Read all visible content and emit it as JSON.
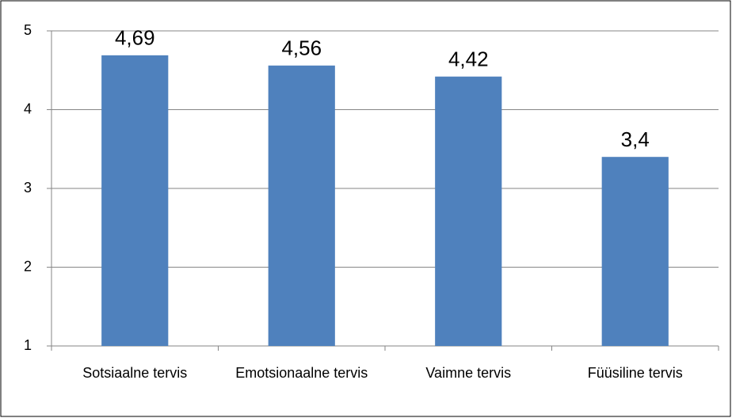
{
  "chart_data": {
    "type": "bar",
    "categories": [
      "Sotsiaalne tervis",
      "Emotsionaalne tervis",
      "Vaimne tervis",
      "Füüsiline tervis"
    ],
    "values": [
      4.69,
      4.56,
      4.42,
      3.4
    ],
    "value_labels": [
      "4,69",
      "4,56",
      "4,42",
      "3,4"
    ],
    "color": "#4f81bd",
    "ylim": [
      1,
      5
    ],
    "yticks": [
      1,
      2,
      3,
      4,
      5
    ],
    "grid": true
  }
}
